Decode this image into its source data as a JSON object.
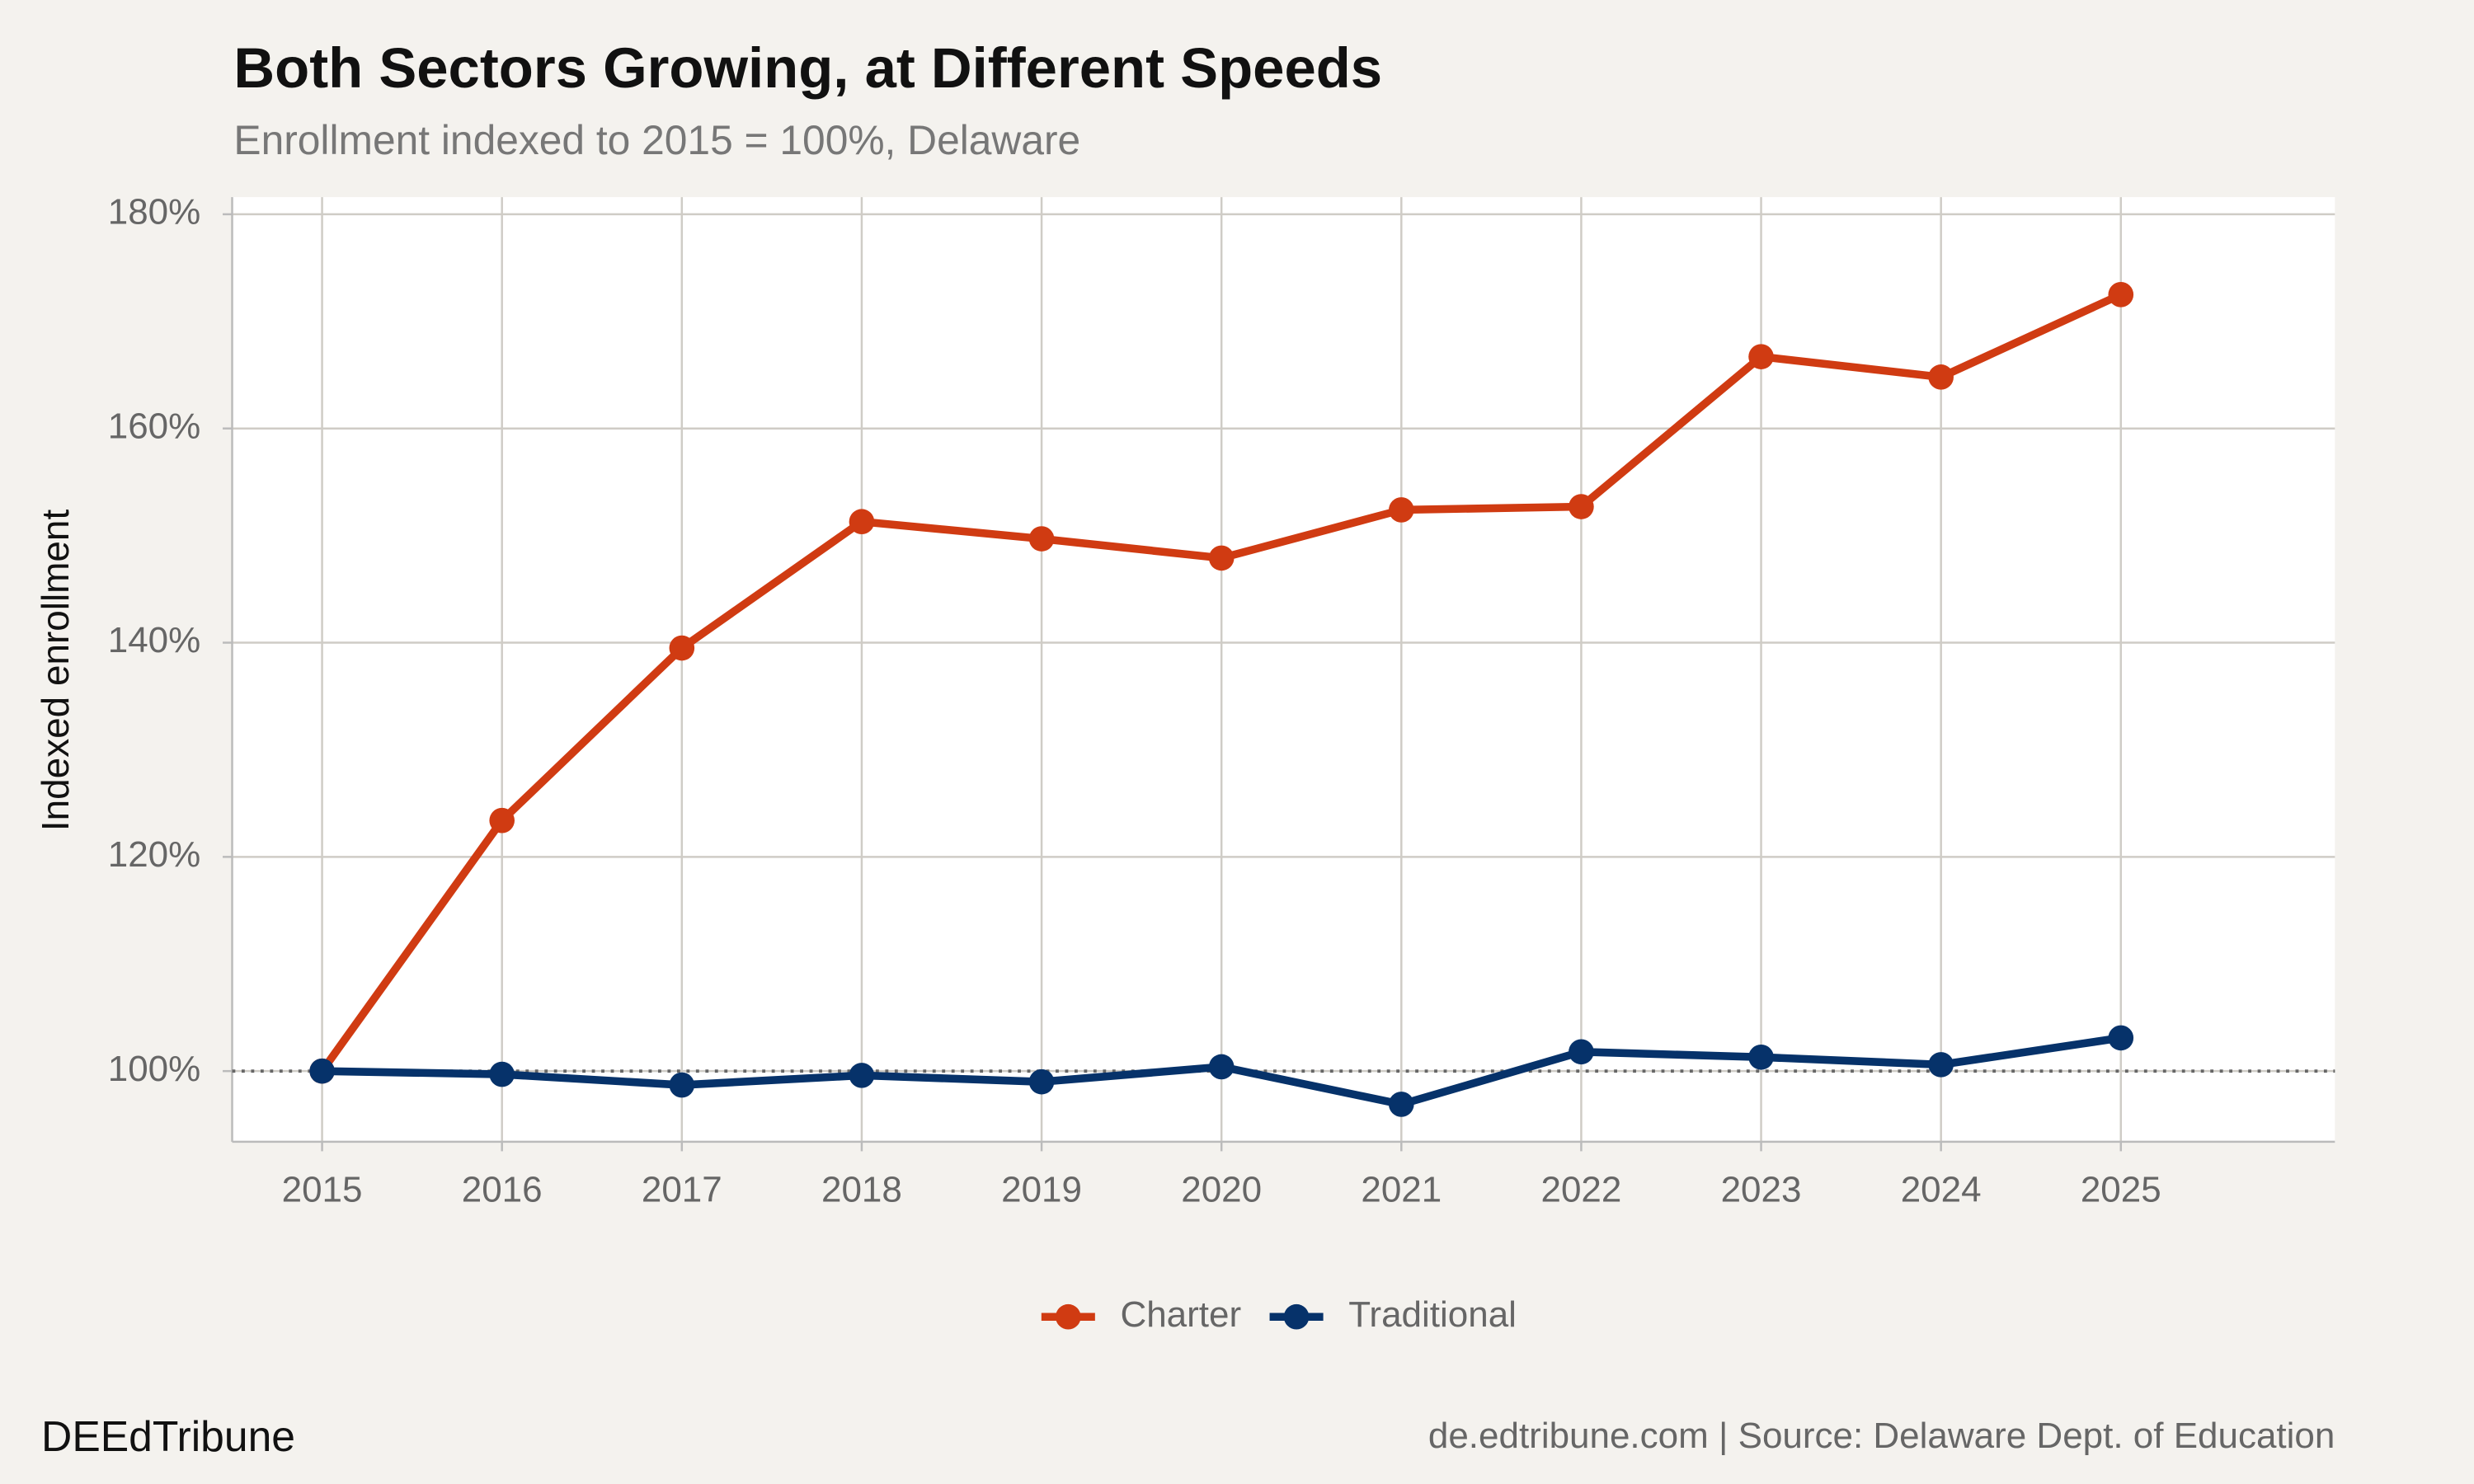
{
  "chart_data": {
    "type": "line",
    "title": "Both Sectors Growing, at Different Speeds",
    "subtitle": "Enrollment indexed to 2015 = 100%, Delaware",
    "y_label": "Indexed enrollment",
    "x": [
      2015,
      2016,
      2017,
      2018,
      2019,
      2020,
      2021,
      2022,
      2023,
      2024,
      2025
    ],
    "series": [
      {
        "name": "Charter",
        "color": "#d03b12",
        "values": [
          100,
          123.4,
          139.5,
          151.3,
          149.7,
          147.9,
          152.4,
          152.7,
          166.7,
          164.8,
          172.5
        ]
      },
      {
        "name": "Traditional",
        "color": "#06326a",
        "values": [
          100,
          99.7,
          98.7,
          99.6,
          99.0,
          100.4,
          96.9,
          101.8,
          101.3,
          100.6,
          103.1
        ]
      }
    ],
    "xlim": [
      2014.5,
      2026.19
    ],
    "xticks": [
      2015,
      2016,
      2017,
      2018,
      2019,
      2020,
      2021,
      2022,
      2023,
      2024,
      2025
    ],
    "ylim": [
      93.4,
      181.6
    ],
    "yticks": [
      {
        "value": 100,
        "label": "100%"
      },
      {
        "value": 120,
        "label": "120%"
      },
      {
        "value": 140,
        "label": "140%"
      },
      {
        "value": 160,
        "label": "160%"
      },
      {
        "value": 180,
        "label": "180%"
      }
    ],
    "reference_line": 100,
    "grid": true,
    "legend": "bottom",
    "brand": "DEEdTribune",
    "source": "de.edtribune.com | Source: Delaware Dept. of Education"
  }
}
